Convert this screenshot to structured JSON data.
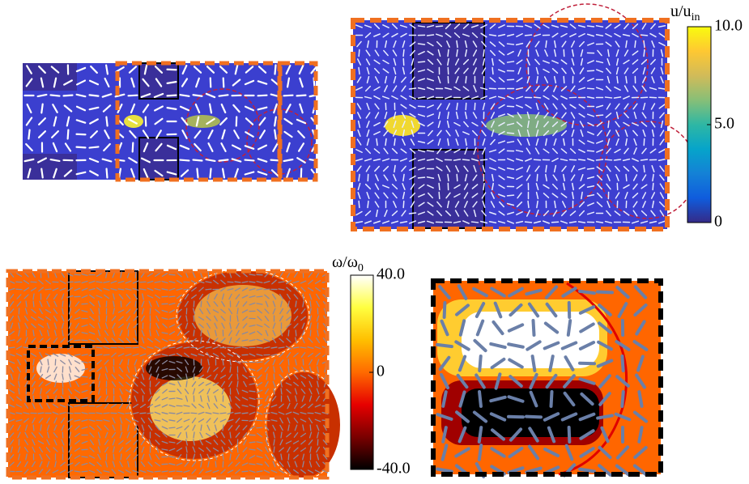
{
  "colorbars": [
    {
      "label": "u/u",
      "label_sub": "in",
      "range": [
        0,
        10
      ],
      "ticks": [
        {
          "value": 10,
          "label": "10.0"
        },
        {
          "value": 5,
          "label": "5.0"
        },
        0
      ],
      "colors": [
        "#352a87",
        "#0f5cdd",
        "#1481d6",
        "#06a4ca",
        "#2eb7a4",
        "#87bf77",
        "#d1bb59",
        "#fec832",
        "#f9fb0e"
      ]
    },
    {
      "label": "ω/ω",
      "label_sub": "0",
      "range": [
        -40,
        40
      ],
      "ticks": [
        {
          "value": 40,
          "label": "40.0"
        },
        0,
        {
          "value": -40,
          "label": "-40.0"
        }
      ],
      "colors": [
        "#000000",
        "#7a0000",
        "#e60000",
        "#ff6a00",
        "#ffbf00",
        "#ffff40",
        "#ffffff"
      ]
    }
  ]
}
